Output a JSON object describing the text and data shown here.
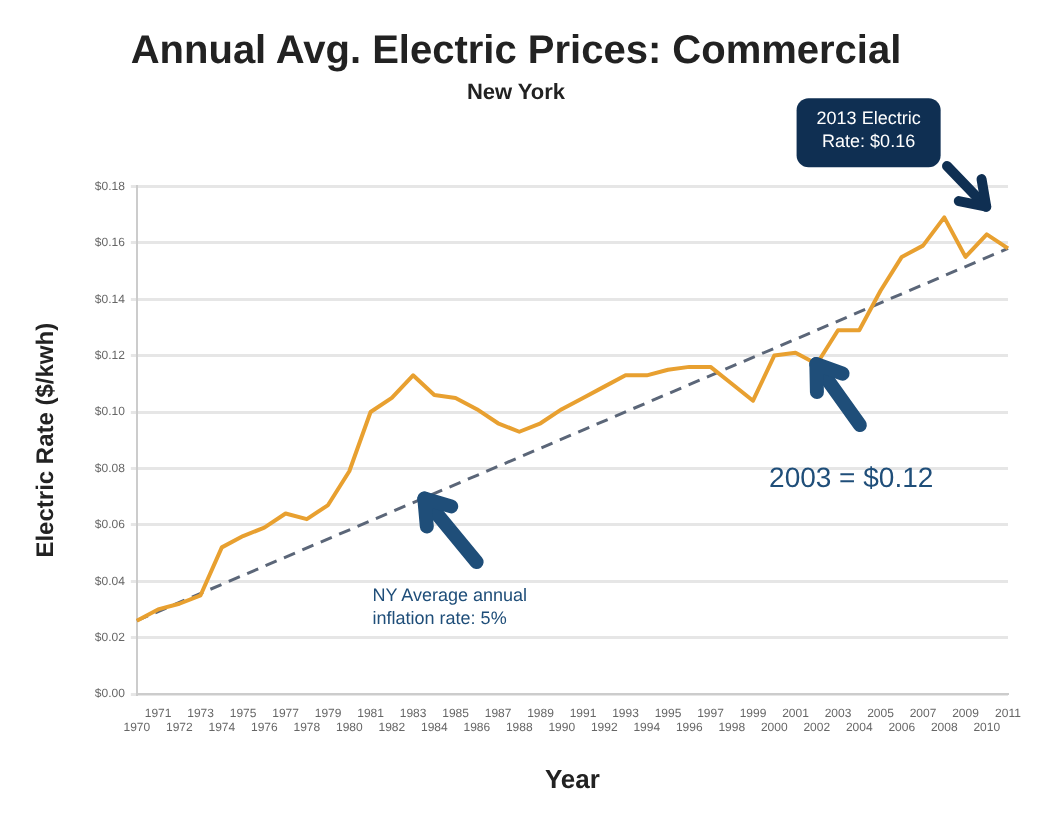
{
  "chart_data": {
    "type": "line",
    "title": "Annual Avg. Electric Prices: Commercial",
    "subtitle": "New York",
    "xlabel": "Year",
    "ylabel": "Electric Rate ($/kwh)",
    "categories": [
      "1970",
      "1971",
      "1972",
      "1973",
      "1974",
      "1975",
      "1976",
      "1977",
      "1978",
      "1979",
      "1980",
      "1981",
      "1982",
      "1983",
      "1984",
      "1985",
      "1986",
      "1987",
      "1988",
      "1989",
      "1990",
      "1991",
      "1992",
      "1993",
      "1994",
      "1995",
      "1996",
      "1997",
      "1998",
      "1999",
      "2000",
      "2001",
      "2002",
      "2003",
      "2004",
      "2005",
      "2006",
      "2007",
      "2008",
      "2009",
      "2010",
      "2011"
    ],
    "series": [
      {
        "color": "#e8a030",
        "line_style": "solid",
        "values": [
          0.026,
          0.03,
          0.032,
          0.035,
          0.052,
          0.056,
          0.059,
          0.064,
          0.062,
          0.067,
          0.079,
          0.1,
          0.105,
          0.113,
          0.106,
          0.105,
          0.101,
          0.096,
          0.093,
          0.096,
          0.101,
          0.105,
          0.109,
          0.113,
          0.113,
          0.115,
          0.116,
          0.116,
          0.11,
          0.104,
          0.12,
          0.121,
          0.117,
          0.129,
          0.129,
          0.143,
          0.155,
          0.159,
          0.169,
          0.155,
          0.163,
          0.158
        ]
      },
      {
        "color": "#5b6678",
        "line_style": "dashed",
        "values": [
          0.026,
          null,
          null,
          null,
          null,
          null,
          null,
          null,
          null,
          null,
          null,
          null,
          null,
          null,
          null,
          null,
          null,
          null,
          null,
          null,
          null,
          null,
          null,
          null,
          null,
          null,
          null,
          null,
          null,
          null,
          null,
          null,
          null,
          null,
          null,
          null,
          null,
          null,
          null,
          null,
          null,
          0.158
        ]
      }
    ],
    "ylim": [
      0,
      0.18
    ],
    "yticks": [
      {
        "value": 0,
        "label": "$0.00"
      },
      {
        "value": 0.02,
        "label": "$0.02"
      },
      {
        "value": 0.04,
        "label": "$0.04"
      },
      {
        "value": 0.06,
        "label": "$0.06"
      },
      {
        "value": 0.08,
        "label": "$0.08"
      },
      {
        "value": 0.1,
        "label": "$0.10"
      },
      {
        "value": 0.12,
        "label": "$0.12"
      },
      {
        "value": 0.14,
        "label": "$0.14"
      },
      {
        "value": 0.16,
        "label": "$0.16"
      },
      {
        "value": 0.18,
        "label": "$0.18"
      }
    ],
    "grid": "y",
    "legend": false,
    "marker": "none",
    "annotations": [
      "2013 Electric Rate: $0.16",
      "2003 = $0.12",
      "NY Average annual inflation rate: 5%"
    ]
  }
}
